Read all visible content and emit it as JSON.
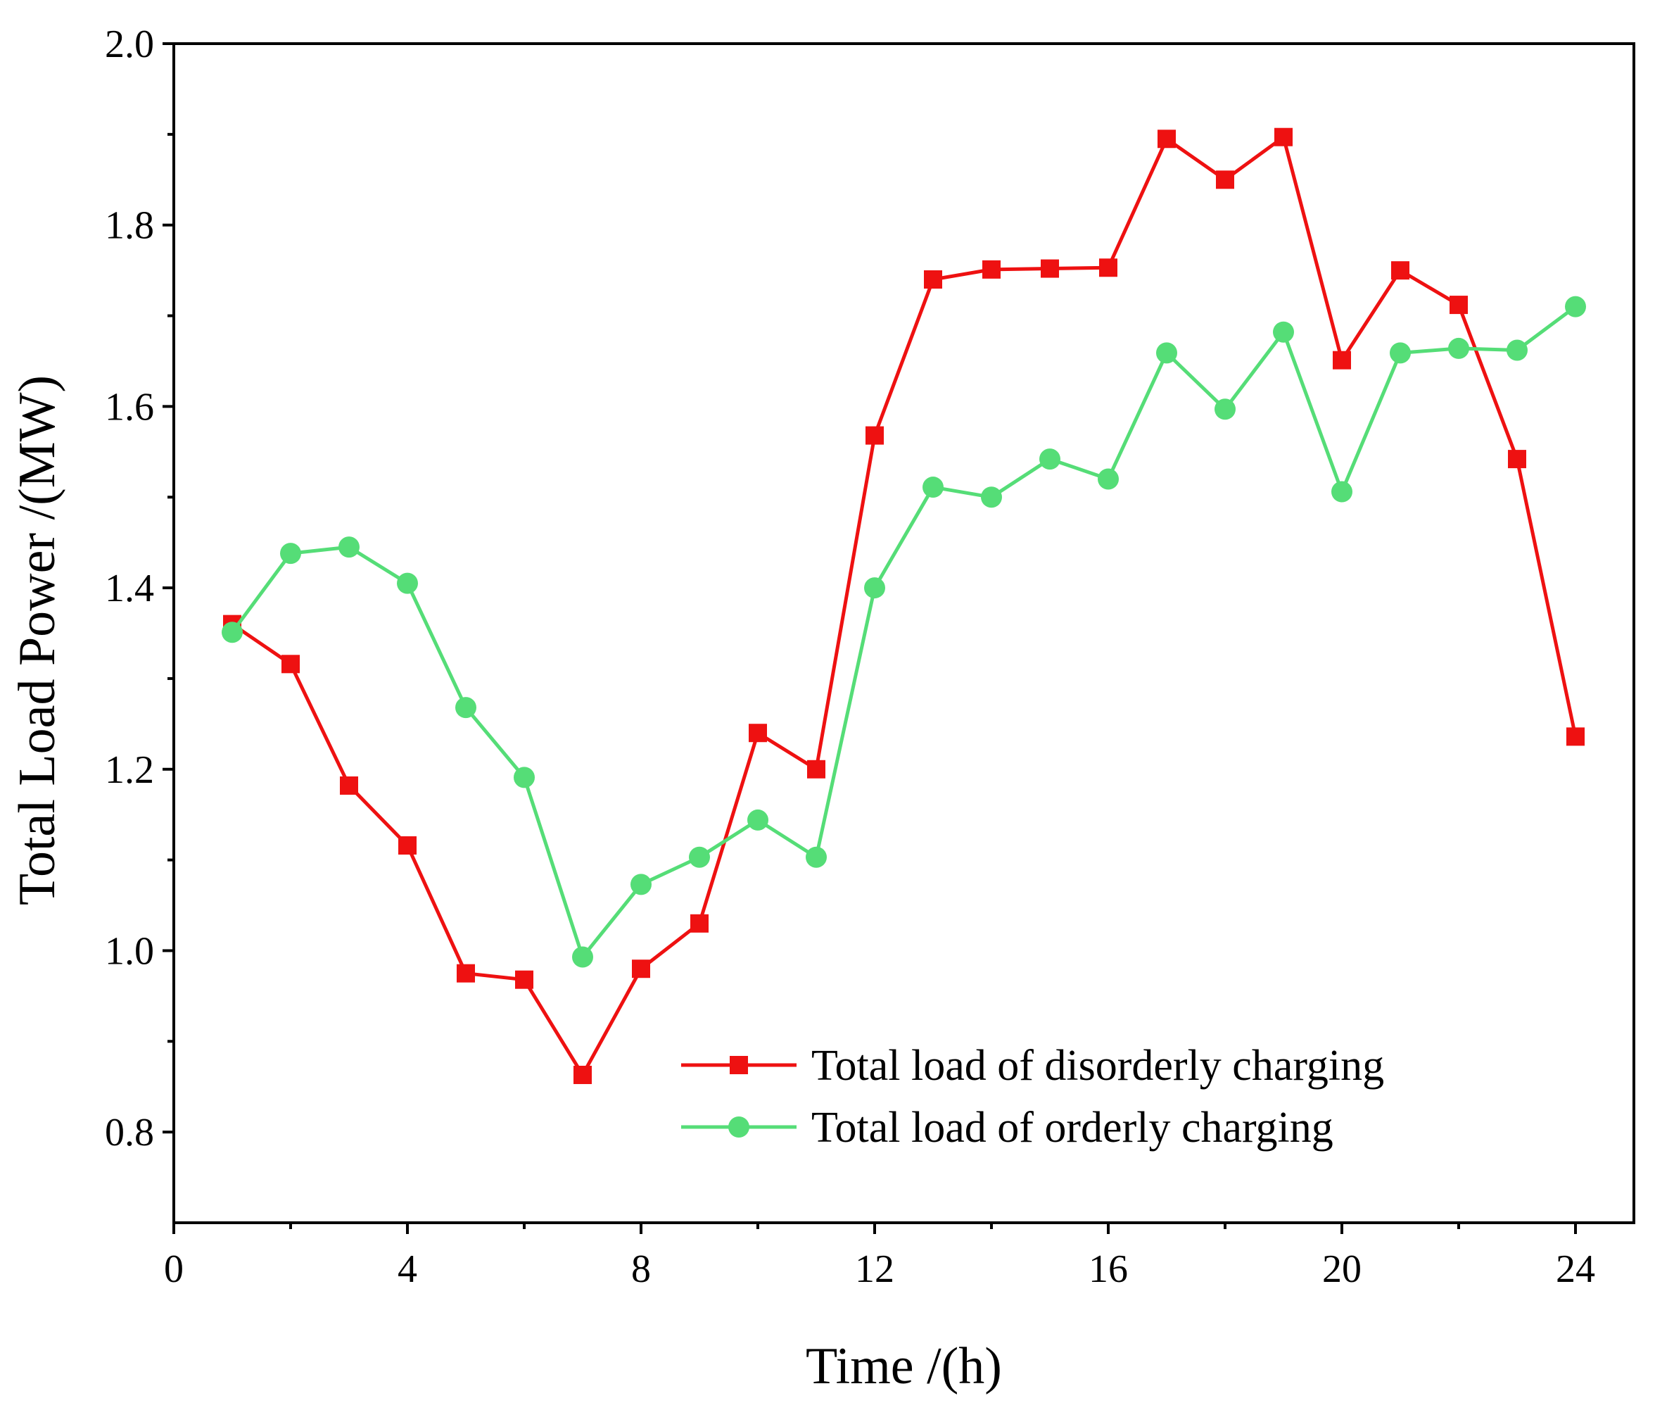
{
  "chart_data": {
    "type": "line",
    "title": "",
    "xlabel": "Time /(h)",
    "ylabel": "Total Load Power  /(MW)",
    "xlim": [
      0,
      25
    ],
    "ylim": [
      0.7,
      2.0
    ],
    "xticks": [
      0,
      4,
      8,
      12,
      16,
      20,
      24
    ],
    "xtick_labels": [
      "0",
      "4",
      "8",
      "12",
      "16",
      "20",
      "24"
    ],
    "yticks": [
      0.8,
      1.0,
      1.2,
      1.4,
      1.6,
      1.8,
      2.0
    ],
    "ytick_labels": [
      "0.8",
      "1.0",
      "1.2",
      "1.4",
      "1.6",
      "1.8",
      "2.0"
    ],
    "grid": false,
    "legend_position": "bottom-right",
    "x": [
      1,
      2,
      3,
      4,
      5,
      6,
      7,
      8,
      9,
      10,
      11,
      12,
      13,
      14,
      15,
      16,
      17,
      18,
      19,
      20,
      21,
      22,
      23,
      24
    ],
    "series": [
      {
        "name": "Total load of disorderly charging",
        "color": "#ee1111",
        "marker": "square",
        "values": [
          1.36,
          1.316,
          1.182,
          1.116,
          0.975,
          0.968,
          0.863,
          0.98,
          1.03,
          1.24,
          1.2,
          1.568,
          1.74,
          1.751,
          1.752,
          1.753,
          1.895,
          1.85,
          1.897,
          1.651,
          1.75,
          1.712,
          1.542,
          1.236
        ]
      },
      {
        "name": "Total load of orderly charging",
        "color": "#55dd77",
        "marker": "circle",
        "values": [
          1.351,
          1.438,
          1.445,
          1.405,
          1.268,
          1.191,
          0.993,
          1.073,
          1.103,
          1.144,
          1.103,
          1.4,
          1.511,
          1.5,
          1.542,
          1.52,
          1.659,
          1.597,
          1.682,
          1.506,
          1.659,
          1.664,
          1.662,
          1.71
        ]
      }
    ]
  }
}
